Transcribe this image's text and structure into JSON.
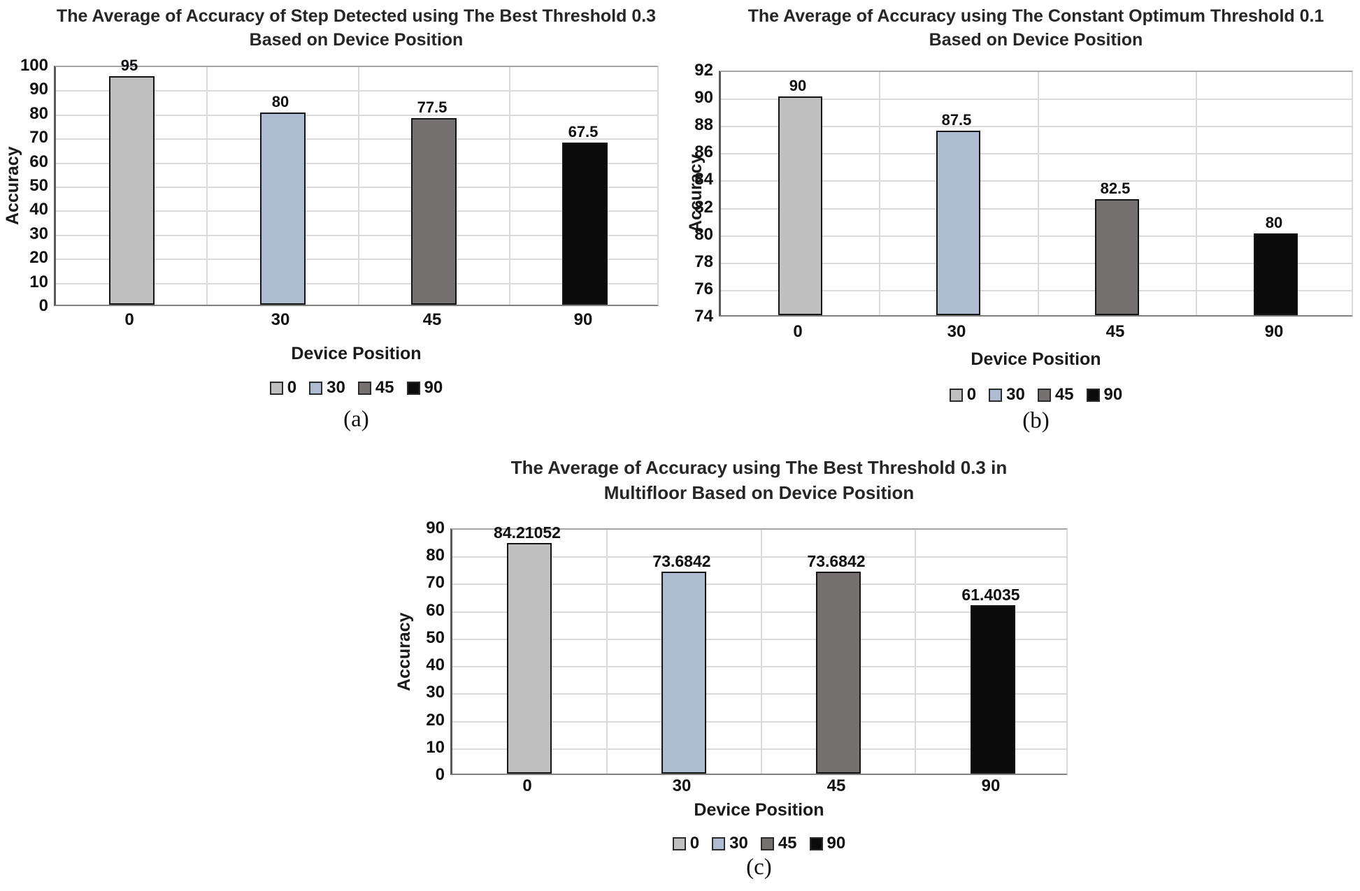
{
  "colors": {
    "bar_palette": [
      "#c0c0c0",
      "#aebcd2",
      "#767171",
      "#0b0b0b"
    ],
    "gridline": "#dadada",
    "bar_border": "#141414",
    "text": "#1a1a1a"
  },
  "chart_data": [
    {
      "type": "bar",
      "caption": "(a)",
      "title": "The Average of Accuracy of Step Detected using The Best Threshold 0.3 Based on Device Position",
      "title_lines": [
        "The Average of Accuracy of Step Detected using The Best Threshold 0.3",
        "Based on Device Position"
      ],
      "categories": [
        "0",
        "30",
        "45",
        "90"
      ],
      "values": [
        95,
        80,
        77.5,
        67.5
      ],
      "value_labels": [
        "95",
        "80",
        "77.5",
        "67.5"
      ],
      "xlabel": "Device Position",
      "ylabel": "Accuracy",
      "ylim": [
        0,
        100
      ],
      "ytick_step": 10,
      "yticks": [
        0,
        10,
        20,
        30,
        40,
        50,
        60,
        70,
        80,
        90,
        100
      ],
      "legend": [
        "0",
        "30",
        "45",
        "90"
      ],
      "legend_position": "bottom",
      "grid": true
    },
    {
      "type": "bar",
      "caption": "(b)",
      "title": "The Average of Accuracy using The Constant Optimum Threshold 0.1 Based on Device Position",
      "title_lines": [
        "The Average of Accuracy using The Constant Optimum Threshold 0.1",
        "Based on Device Position"
      ],
      "categories": [
        "0",
        "30",
        "45",
        "90"
      ],
      "values": [
        90,
        87.5,
        82.5,
        80
      ],
      "value_labels": [
        "90",
        "87.5",
        "82.5",
        "80"
      ],
      "xlabel": "Device Position",
      "ylabel": "Accuracy",
      "ylim": [
        74,
        92
      ],
      "ytick_step": 2,
      "yticks": [
        74,
        76,
        78,
        80,
        82,
        84,
        86,
        88,
        90,
        92
      ],
      "legend": [
        "0",
        "30",
        "45",
        "90"
      ],
      "legend_position": "bottom",
      "grid": true
    },
    {
      "type": "bar",
      "caption": "(c)",
      "title": "The Average of Accuracy using The Best Threshold 0.3 in Multifloor Based on Device Position",
      "title_lines": [
        "The Average of Accuracy using The Best Threshold 0.3 in",
        "Multifloor Based on Device Position"
      ],
      "categories": [
        "0",
        "30",
        "45",
        "90"
      ],
      "values": [
        84.21052,
        73.6842,
        73.6842,
        61.4035
      ],
      "value_labels": [
        "84.21052",
        "73.6842",
        "73.6842",
        "61.4035"
      ],
      "xlabel": "Device Position",
      "ylabel": "Accuracy",
      "ylim": [
        0,
        90
      ],
      "ytick_step": 10,
      "yticks": [
        0,
        10,
        20,
        30,
        40,
        50,
        60,
        70,
        80,
        90
      ],
      "legend": [
        "0",
        "30",
        "45",
        "90"
      ],
      "legend_position": "bottom",
      "grid": true
    }
  ]
}
